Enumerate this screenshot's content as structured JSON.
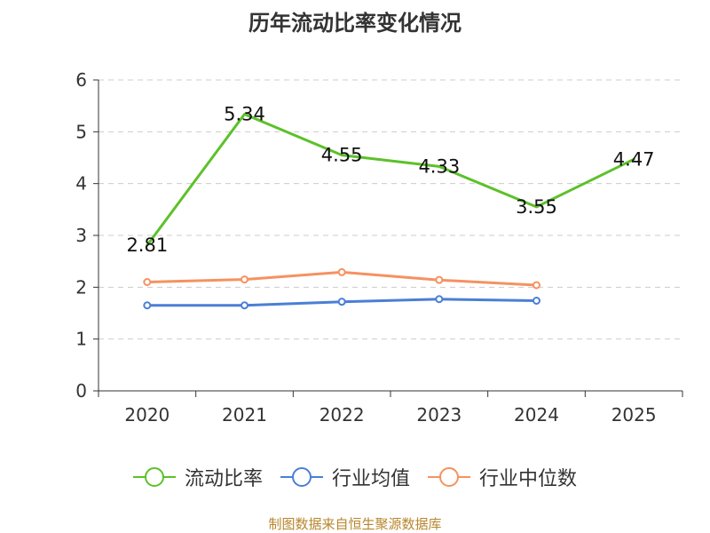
{
  "title": "历年流动比率变化情况",
  "source": "制图数据来自恒生聚源数据库",
  "chart_data": {
    "type": "line",
    "categories": [
      "2020",
      "2021",
      "2022",
      "2023",
      "2024",
      "2025"
    ],
    "ylim": [
      0,
      6
    ],
    "yticks": [
      0,
      1,
      2,
      3,
      4,
      5,
      6
    ],
    "grid": true,
    "legend_position": "bottom-center",
    "series": [
      {
        "name": "流动比率",
        "color": "#5cc12a",
        "markers": false,
        "labels": true,
        "values": [
          2.81,
          5.34,
          4.55,
          4.33,
          3.55,
          4.47
        ]
      },
      {
        "name": "行业均值",
        "color": "#4a7fd6",
        "markers": true,
        "labels": false,
        "values": [
          1.65,
          1.65,
          1.72,
          1.77,
          1.74,
          null
        ]
      },
      {
        "name": "行业中位数",
        "color": "#f59260",
        "markers": true,
        "labels": false,
        "values": [
          2.1,
          2.15,
          2.29,
          2.14,
          2.04,
          null
        ]
      }
    ]
  }
}
